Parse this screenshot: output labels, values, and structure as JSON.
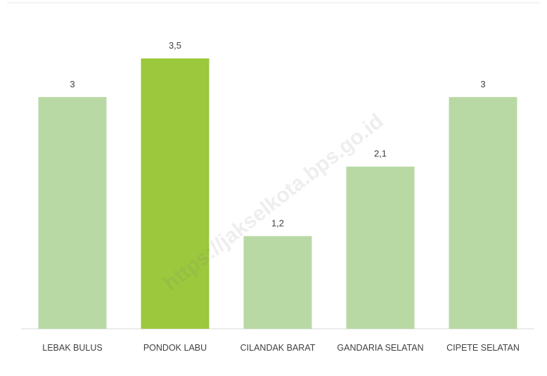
{
  "chart_data": {
    "type": "bar",
    "categories": [
      "LEBAK BULUS",
      "PONDOK LABU",
      "CILANDAK BARAT",
      "GANDARIA SELATAN",
      "CIPETE SELATAN"
    ],
    "values": [
      3,
      3.5,
      1.2,
      2.1,
      3
    ],
    "value_labels": [
      "3",
      "3,5",
      "1,2",
      "2,1",
      "3"
    ],
    "colors": [
      "#b8d9a4",
      "#9bc83c",
      "#b8d9a4",
      "#b8d9a4",
      "#b8d9a4"
    ],
    "watermark": "https://jakselkota.bps.go.id"
  }
}
